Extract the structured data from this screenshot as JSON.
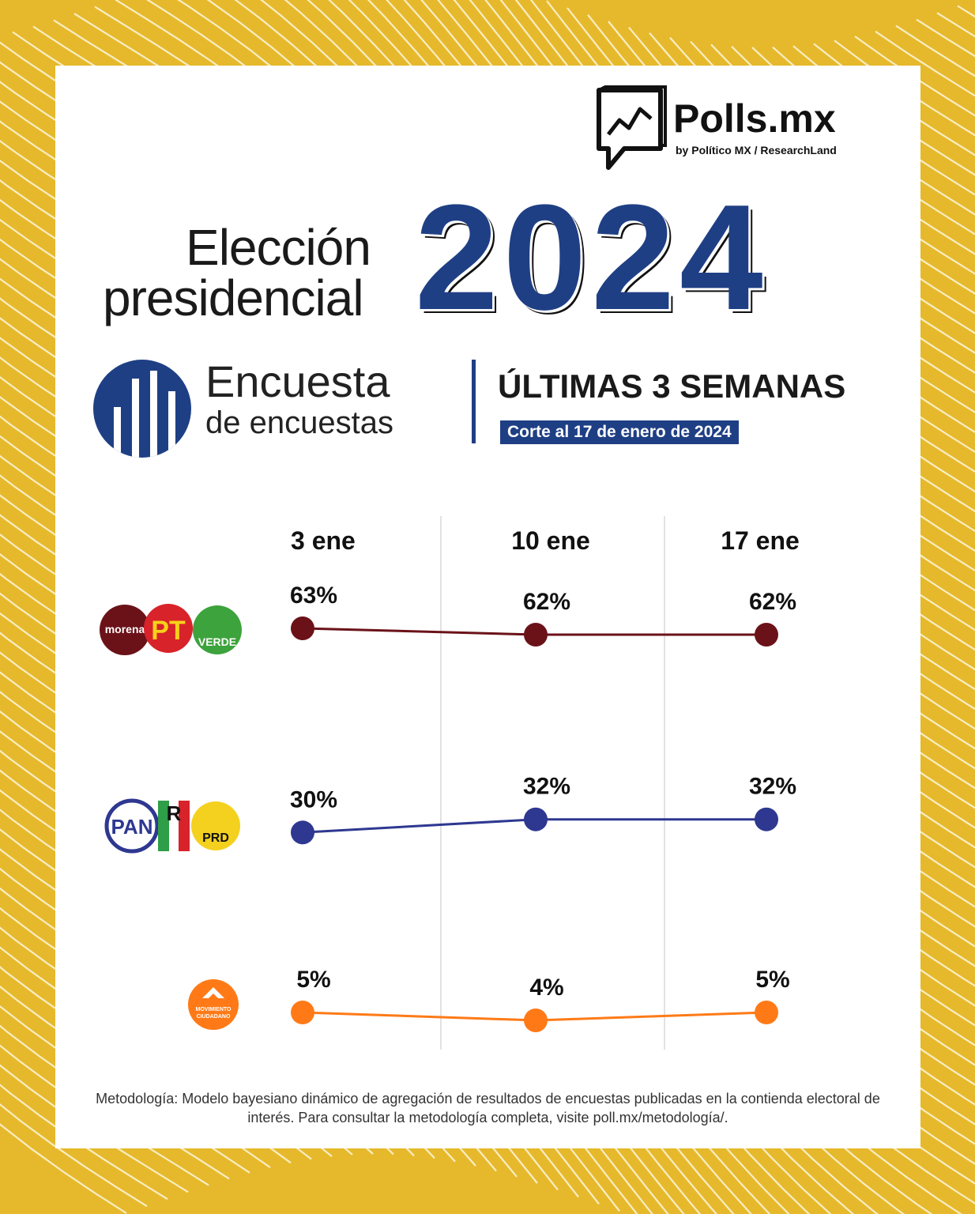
{
  "brand": {
    "name": "Polls.mx",
    "byline": "by Político MX  /  ResearchLand"
  },
  "headline": {
    "line1": "Elección",
    "line2": "presidencial",
    "year": "2024"
  },
  "subheader": {
    "title": "Encuesta",
    "subtitle": "de encuestas",
    "period": "ÚLTIMAS 3 SEMANAS",
    "cutoff": "Corte al 17 de enero de 2024"
  },
  "parties": {
    "morena": "morena",
    "pt": "PT",
    "verde": "VERDE",
    "pan": "PAN",
    "pri": "R",
    "prd": "PRD",
    "mc_line1": "MOVIMIENTO",
    "mc_line2": "CIUDADANO"
  },
  "chart_data": {
    "type": "line",
    "title": "Encuesta de encuestas — Últimas 3 semanas",
    "categories": [
      "3 ene",
      "10 ene",
      "17 ene"
    ],
    "ylim": [
      0,
      100
    ],
    "series": [
      {
        "name": "Morena-PT-Verde",
        "values": [
          63,
          62,
          62
        ],
        "labels": [
          "63%",
          "62%",
          "62%"
        ],
        "color": "#6b1219"
      },
      {
        "name": "PAN-PRI-PRD",
        "values": [
          30,
          32,
          32
        ],
        "labels": [
          "30%",
          "32%",
          "32%"
        ],
        "color": "#2e3891"
      },
      {
        "name": "Movimiento Ciudadano",
        "values": [
          5,
          4,
          5
        ],
        "labels": [
          "5%",
          "4%",
          "5%"
        ],
        "color": "#ff7a17"
      }
    ]
  },
  "footnote": "Metodología: Modelo bayesiano dinámico de agregación de resultados de encuestas publicadas en la contienda electoral de interés. Para consultar la metodología completa, visite poll.mx/metodología/.",
  "colors": {
    "frame": "#e6b92c",
    "accent": "#1f3f85",
    "morena": "#6b1219",
    "pan": "#2e3891",
    "mc": "#ff7a17"
  }
}
